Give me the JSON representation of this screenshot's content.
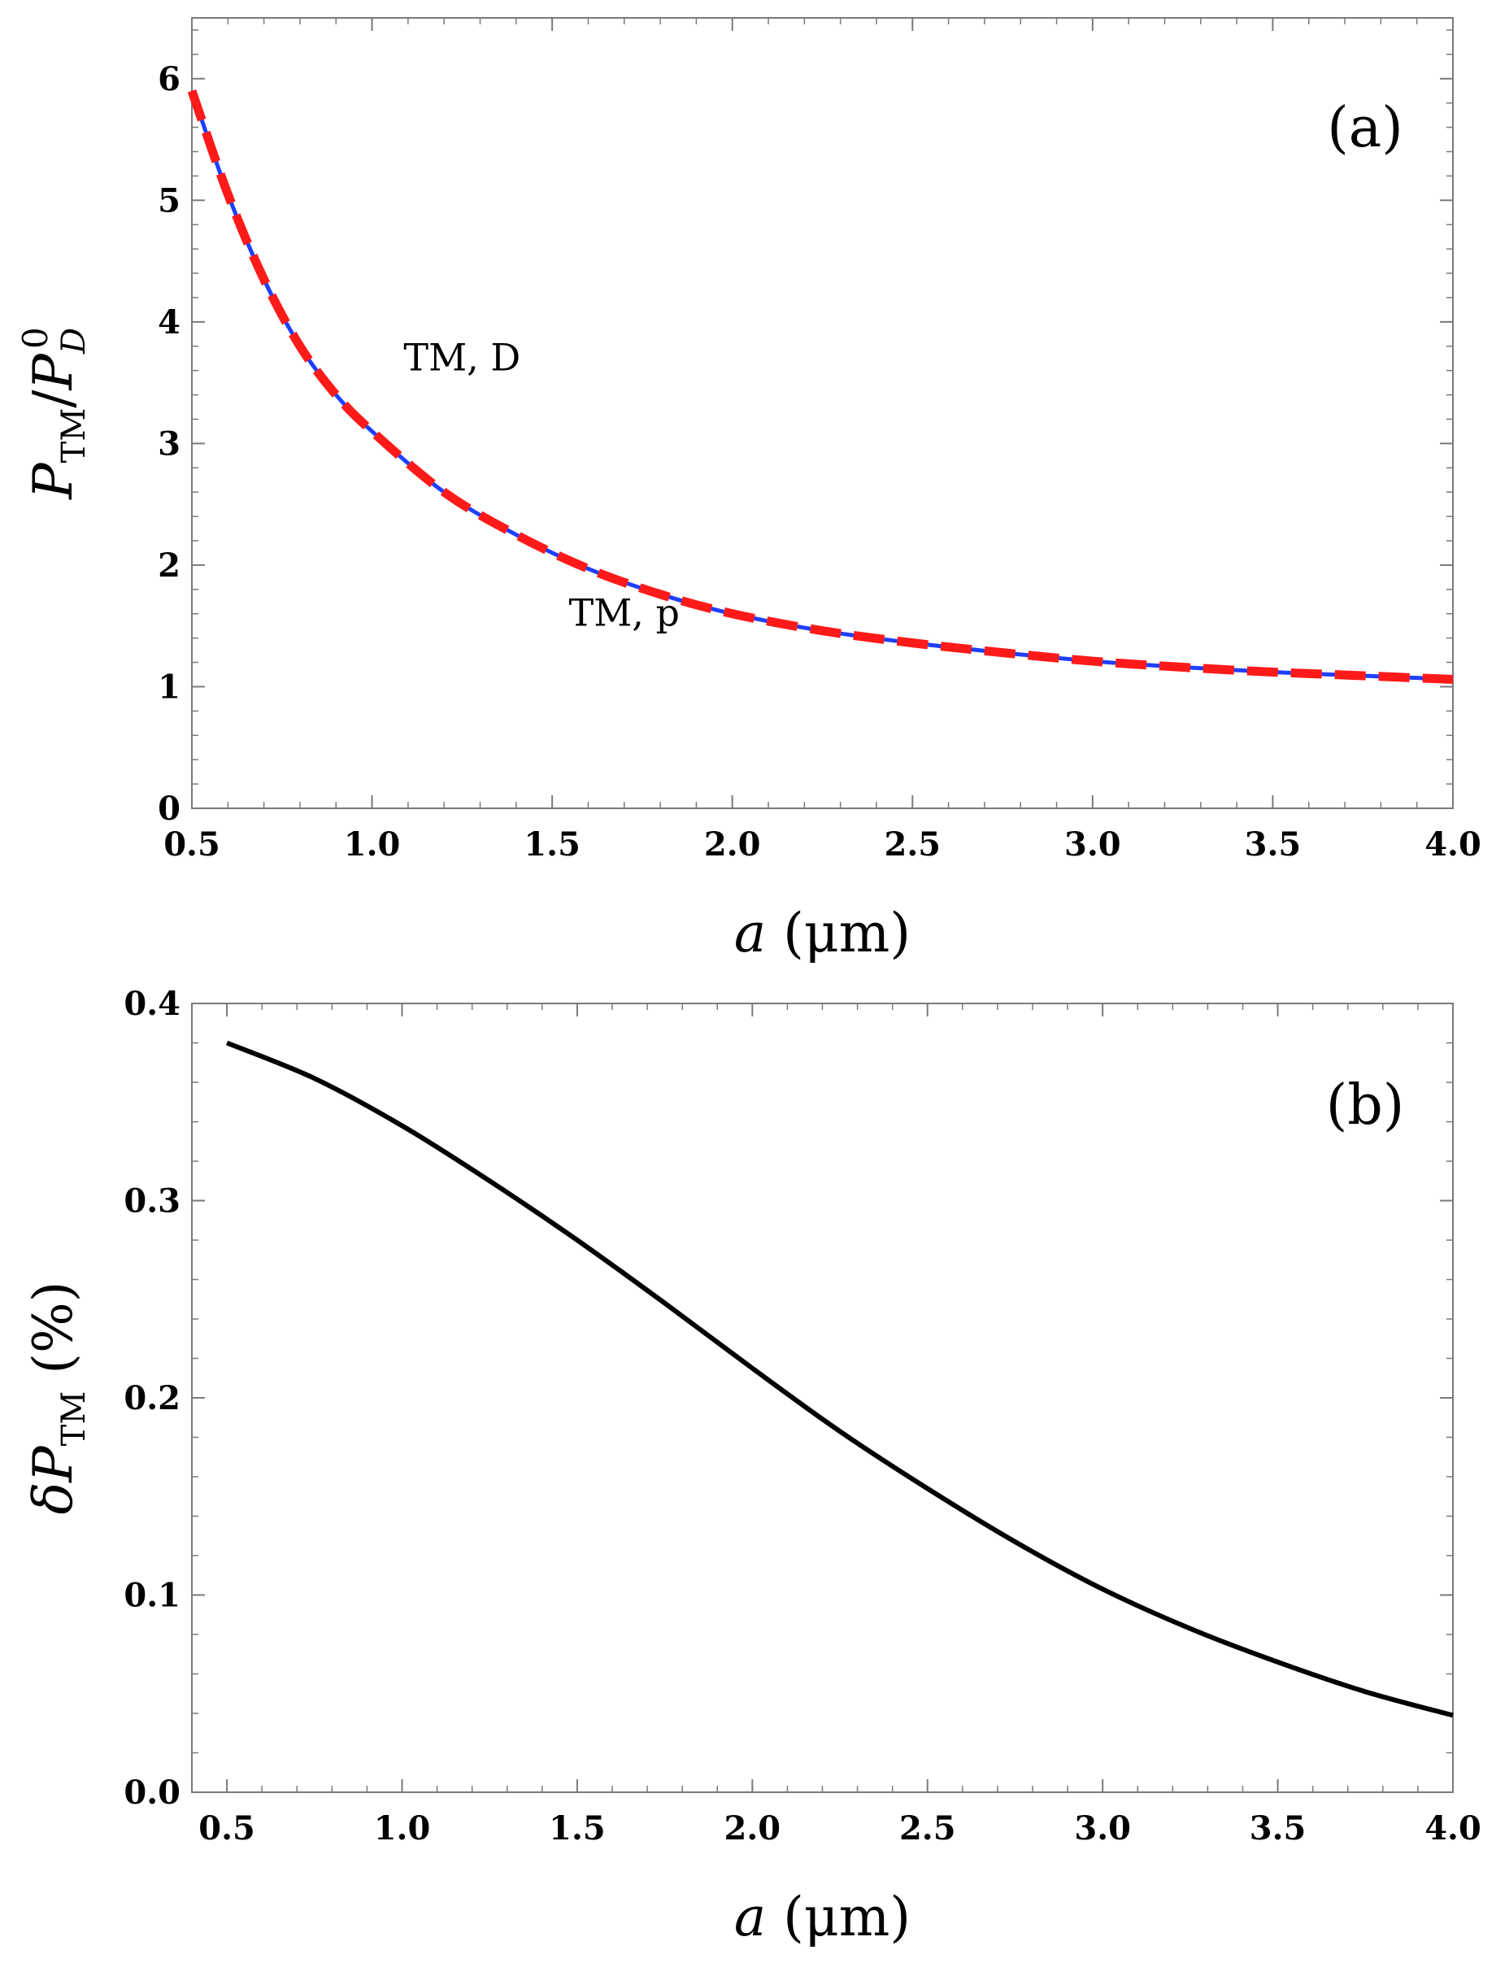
{
  "chart_data": [
    {
      "type": "line",
      "panel_label": "(a)",
      "xlabel": {
        "var": "a",
        "unit": " (μm)"
      },
      "ylabel": {
        "base": "P",
        "sub1": "TM",
        "slash": "/",
        "base2": "P",
        "sub2": "D",
        "sup2": "0"
      },
      "xlim": [
        0.5,
        4.0
      ],
      "ylim": [
        0,
        6.5
      ],
      "xticks": [
        0.5,
        1.0,
        1.5,
        2.0,
        2.5,
        3.0,
        3.5,
        4.0
      ],
      "xtick_labels": [
        "0.5",
        "1.0",
        "1.5",
        "2.0",
        "2.5",
        "3.0",
        "3.5",
        "4.0"
      ],
      "yticks": [
        0,
        1,
        2,
        3,
        4,
        5,
        6
      ],
      "ytick_labels": [
        "0",
        "1",
        "2",
        "3",
        "4",
        "5",
        "6"
      ],
      "grid": false,
      "annotations": [
        {
          "text": "TM, D",
          "x": 1.25,
          "y": 3.6
        },
        {
          "text": "TM, p",
          "x": 1.7,
          "y": 1.5
        }
      ],
      "series": [
        {
          "name": "TM, p",
          "color": "#1f3fff",
          "style": "solid",
          "x": [
            0.5,
            0.6,
            0.7,
            0.8,
            0.9,
            1.0,
            1.2,
            1.4,
            1.6,
            1.8,
            2.0,
            2.25,
            2.5,
            2.75,
            3.0,
            3.25,
            3.5,
            3.75,
            4.0
          ],
          "y": [
            5.9,
            5.05,
            4.35,
            3.8,
            3.4,
            3.1,
            2.6,
            2.25,
            1.97,
            1.76,
            1.6,
            1.46,
            1.36,
            1.28,
            1.21,
            1.16,
            1.12,
            1.09,
            1.06
          ]
        },
        {
          "name": "TM, D",
          "color": "#ff1a1a",
          "style": "dashed",
          "x": [
            0.5,
            0.6,
            0.7,
            0.8,
            0.9,
            1.0,
            1.2,
            1.4,
            1.6,
            1.8,
            2.0,
            2.25,
            2.5,
            2.75,
            3.0,
            3.25,
            3.5,
            3.75,
            4.0
          ],
          "y": [
            5.9,
            5.05,
            4.35,
            3.8,
            3.4,
            3.1,
            2.6,
            2.25,
            1.97,
            1.76,
            1.6,
            1.46,
            1.36,
            1.28,
            1.21,
            1.16,
            1.12,
            1.09,
            1.06
          ]
        }
      ]
    },
    {
      "type": "line",
      "panel_label": "(b)",
      "xlabel": {
        "var": "a",
        "unit": " (μm)"
      },
      "ylabel": {
        "pre": "δ",
        "base": "P",
        "sub1": "TM",
        "unit": " (%)"
      },
      "xlim": [
        0.4,
        4.0
      ],
      "ylim": [
        0.0,
        0.4
      ],
      "xticks": [
        0.5,
        1.0,
        1.5,
        2.0,
        2.5,
        3.0,
        3.5,
        4.0
      ],
      "xtick_labels": [
        "0.5",
        "1.0",
        "1.5",
        "2.0",
        "2.5",
        "3.0",
        "3.5",
        "4.0"
      ],
      "yticks": [
        0.0,
        0.1,
        0.2,
        0.3,
        0.4
      ],
      "ytick_labels": [
        "0.0",
        "0.1",
        "0.2",
        "0.3",
        "0.4"
      ],
      "grid": false,
      "series": [
        {
          "color": "#000000",
          "style": "solid",
          "x": [
            0.5,
            0.75,
            1.0,
            1.25,
            1.5,
            1.75,
            2.0,
            2.25,
            2.5,
            2.75,
            3.0,
            3.25,
            3.5,
            3.75,
            4.0
          ],
          "y": [
            0.38,
            0.362,
            0.338,
            0.31,
            0.28,
            0.248,
            0.215,
            0.183,
            0.154,
            0.127,
            0.103,
            0.083,
            0.066,
            0.051,
            0.039
          ]
        }
      ]
    }
  ]
}
